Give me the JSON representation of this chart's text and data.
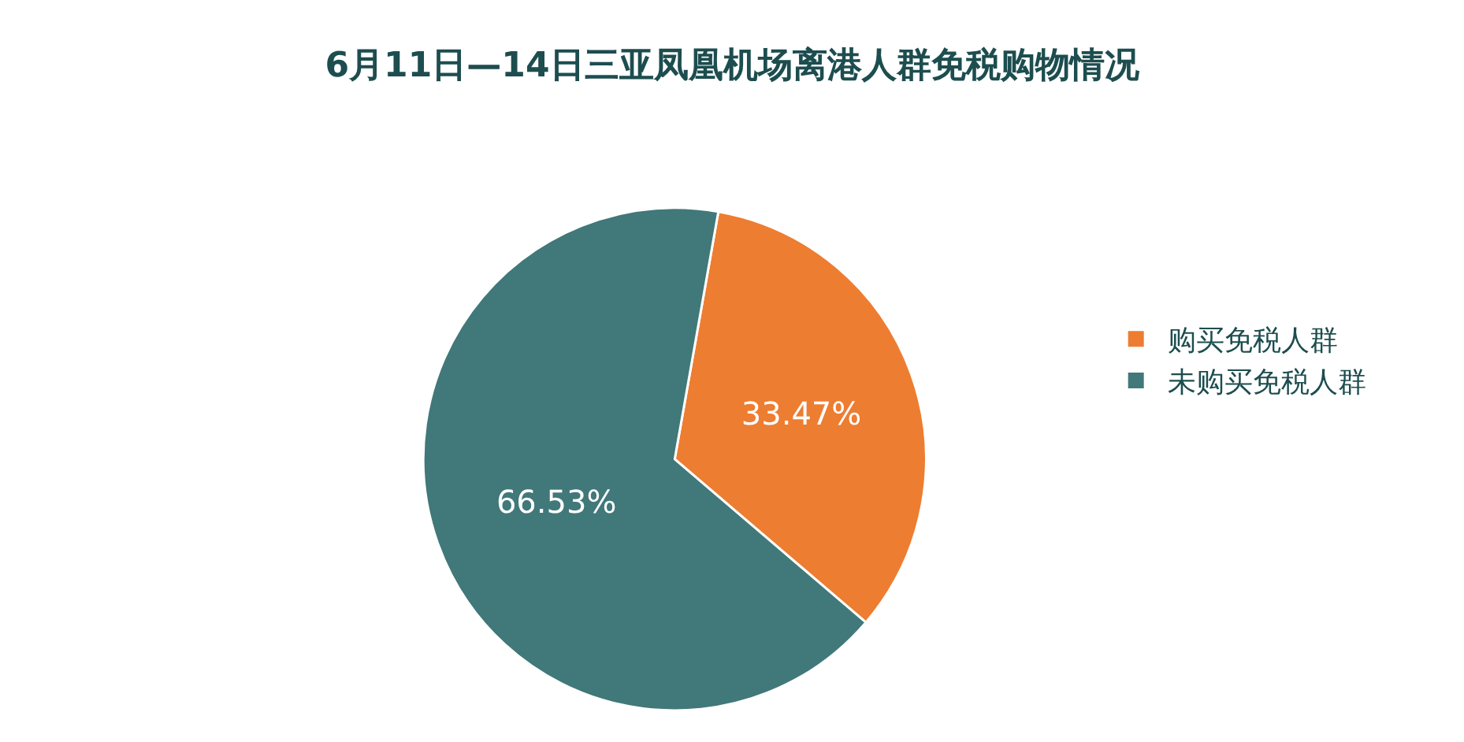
{
  "chart_data": {
    "type": "pie",
    "title": "6月11日—14日三亚凤凰机场离港人群免税购物情况",
    "categories": [
      "购买免税人群",
      "未购买免税人群"
    ],
    "values": [
      33.47,
      66.53
    ],
    "value_labels": [
      "33.47%",
      "66.53%"
    ],
    "colors": [
      "#ed7d31",
      "#41787a"
    ],
    "legend": "right"
  }
}
